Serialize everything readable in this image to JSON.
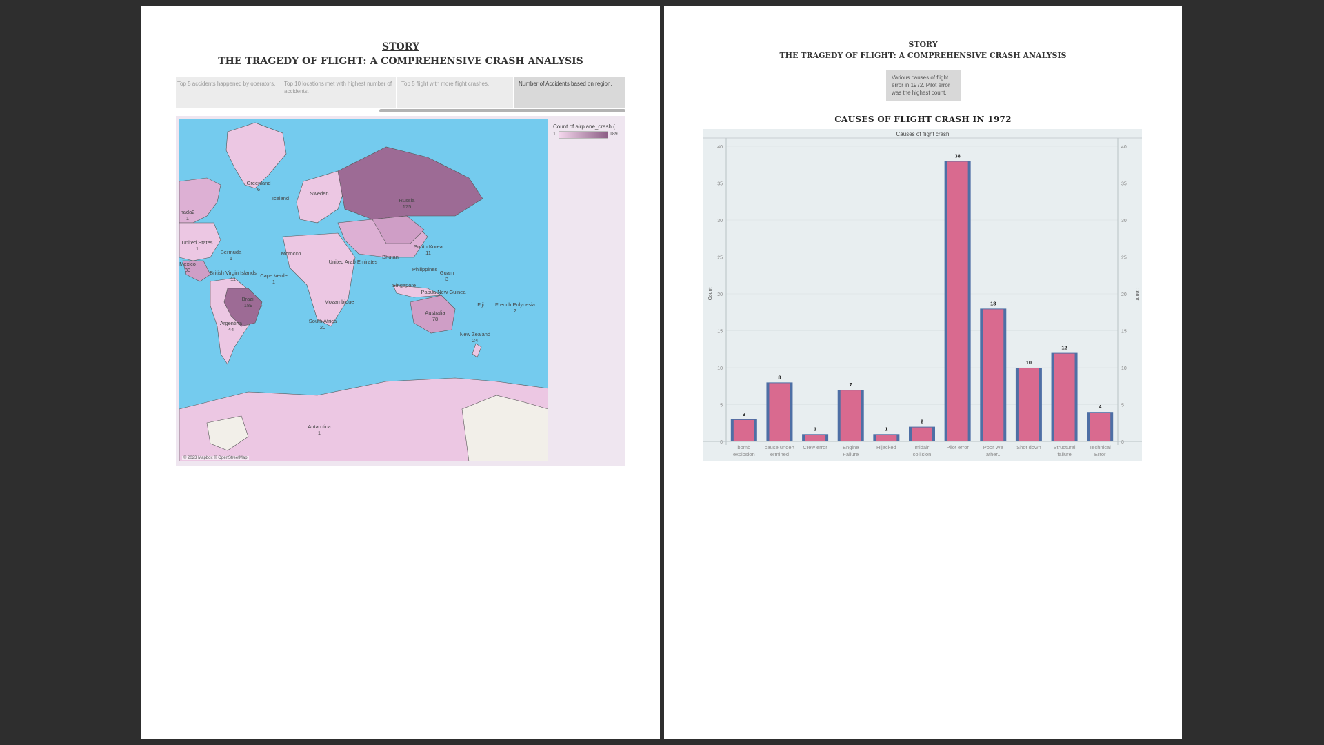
{
  "left": {
    "story": "STORY",
    "subtitle": "THE TRAGEDY OF FLIGHT: A COMPREHENSIVE CRASH ANALYSIS",
    "tabs": [
      {
        "label": "Top 5 accidents happened by operators."
      },
      {
        "label": "Top 10 locations met with highest number of accidents."
      },
      {
        "label": "Top 5 flight with more flight crashes."
      },
      {
        "label": "Number of Accidents based on region."
      }
    ],
    "legend": {
      "title": "Count of airplane_crash (...",
      "min": "1",
      "max": "189"
    },
    "attribution": "© 2023 Mapbox © OpenStreetMap",
    "map_labels": [
      {
        "name": "Greenland",
        "value": "6"
      },
      {
        "name": "Iceland",
        "value": ""
      },
      {
        "name": "Sweden",
        "value": ""
      },
      {
        "name": "Russia",
        "value": "175"
      },
      {
        "name": "nada2",
        "value": "1"
      },
      {
        "name": "United States",
        "value": "1"
      },
      {
        "name": "Bermuda",
        "value": "1"
      },
      {
        "name": "Mexico",
        "value": "83"
      },
      {
        "name": "British Virgin Islands",
        "value": "11"
      },
      {
        "name": "Cape Verde",
        "value": "1"
      },
      {
        "name": "Morocco",
        "value": ""
      },
      {
        "name": "United Arab Emirates",
        "value": ""
      },
      {
        "name": "Bhutan",
        "value": ""
      },
      {
        "name": "South Korea",
        "value": "11"
      },
      {
        "name": "Philippines",
        "value": ""
      },
      {
        "name": "Guam",
        "value": "3"
      },
      {
        "name": "Singapore",
        "value": ""
      },
      {
        "name": "Papua New Guinea",
        "value": ""
      },
      {
        "name": "Brazil",
        "value": "189"
      },
      {
        "name": "Argentina",
        "value": "44"
      },
      {
        "name": "Mozambique",
        "value": ""
      },
      {
        "name": "South Africa",
        "value": "20"
      },
      {
        "name": "Australia",
        "value": "78"
      },
      {
        "name": "Fiji",
        "value": ""
      },
      {
        "name": "French Polynesia",
        "value": "2"
      },
      {
        "name": "New Zealand",
        "value": "24"
      },
      {
        "name": "Antarctica",
        "value": "1"
      }
    ]
  },
  "right": {
    "story": "STORY",
    "subtitle": "THE TRAGEDY OF FLIGHT: A COMPREHENSIVE CRASH ANALYSIS",
    "caption": "Various causes of flight error in 1972. Pilot error was the highest count."
  },
  "chart_data": {
    "type": "bar",
    "title": "CAUSES OF FLIGHT CRASH IN 1972",
    "header": "Causes of flight crash",
    "ylabel": "Count",
    "ylabel_right": "Count",
    "ylim": [
      0,
      40
    ],
    "yticks": [
      0,
      5,
      10,
      15,
      20,
      25,
      30,
      35,
      40
    ],
    "categories": [
      [
        "bomb",
        "explosion"
      ],
      [
        "cause undert",
        "ermined"
      ],
      [
        "Crew error"
      ],
      [
        "Engine",
        "Failure"
      ],
      [
        "Hijacked"
      ],
      [
        "midair",
        "collision"
      ],
      [
        "Pilot error"
      ],
      [
        "Poor We",
        "ather.."
      ],
      [
        "Shot down"
      ],
      [
        "Structural",
        "failure"
      ],
      [
        "Technical",
        "Error"
      ]
    ],
    "values": [
      3,
      8,
      1,
      7,
      1,
      2,
      38,
      18,
      10,
      12,
      4
    ],
    "colors": {
      "bar_fill": "#d96a8f",
      "bar_outline": "#4e6fa5",
      "panel": "#e8eef0"
    }
  }
}
